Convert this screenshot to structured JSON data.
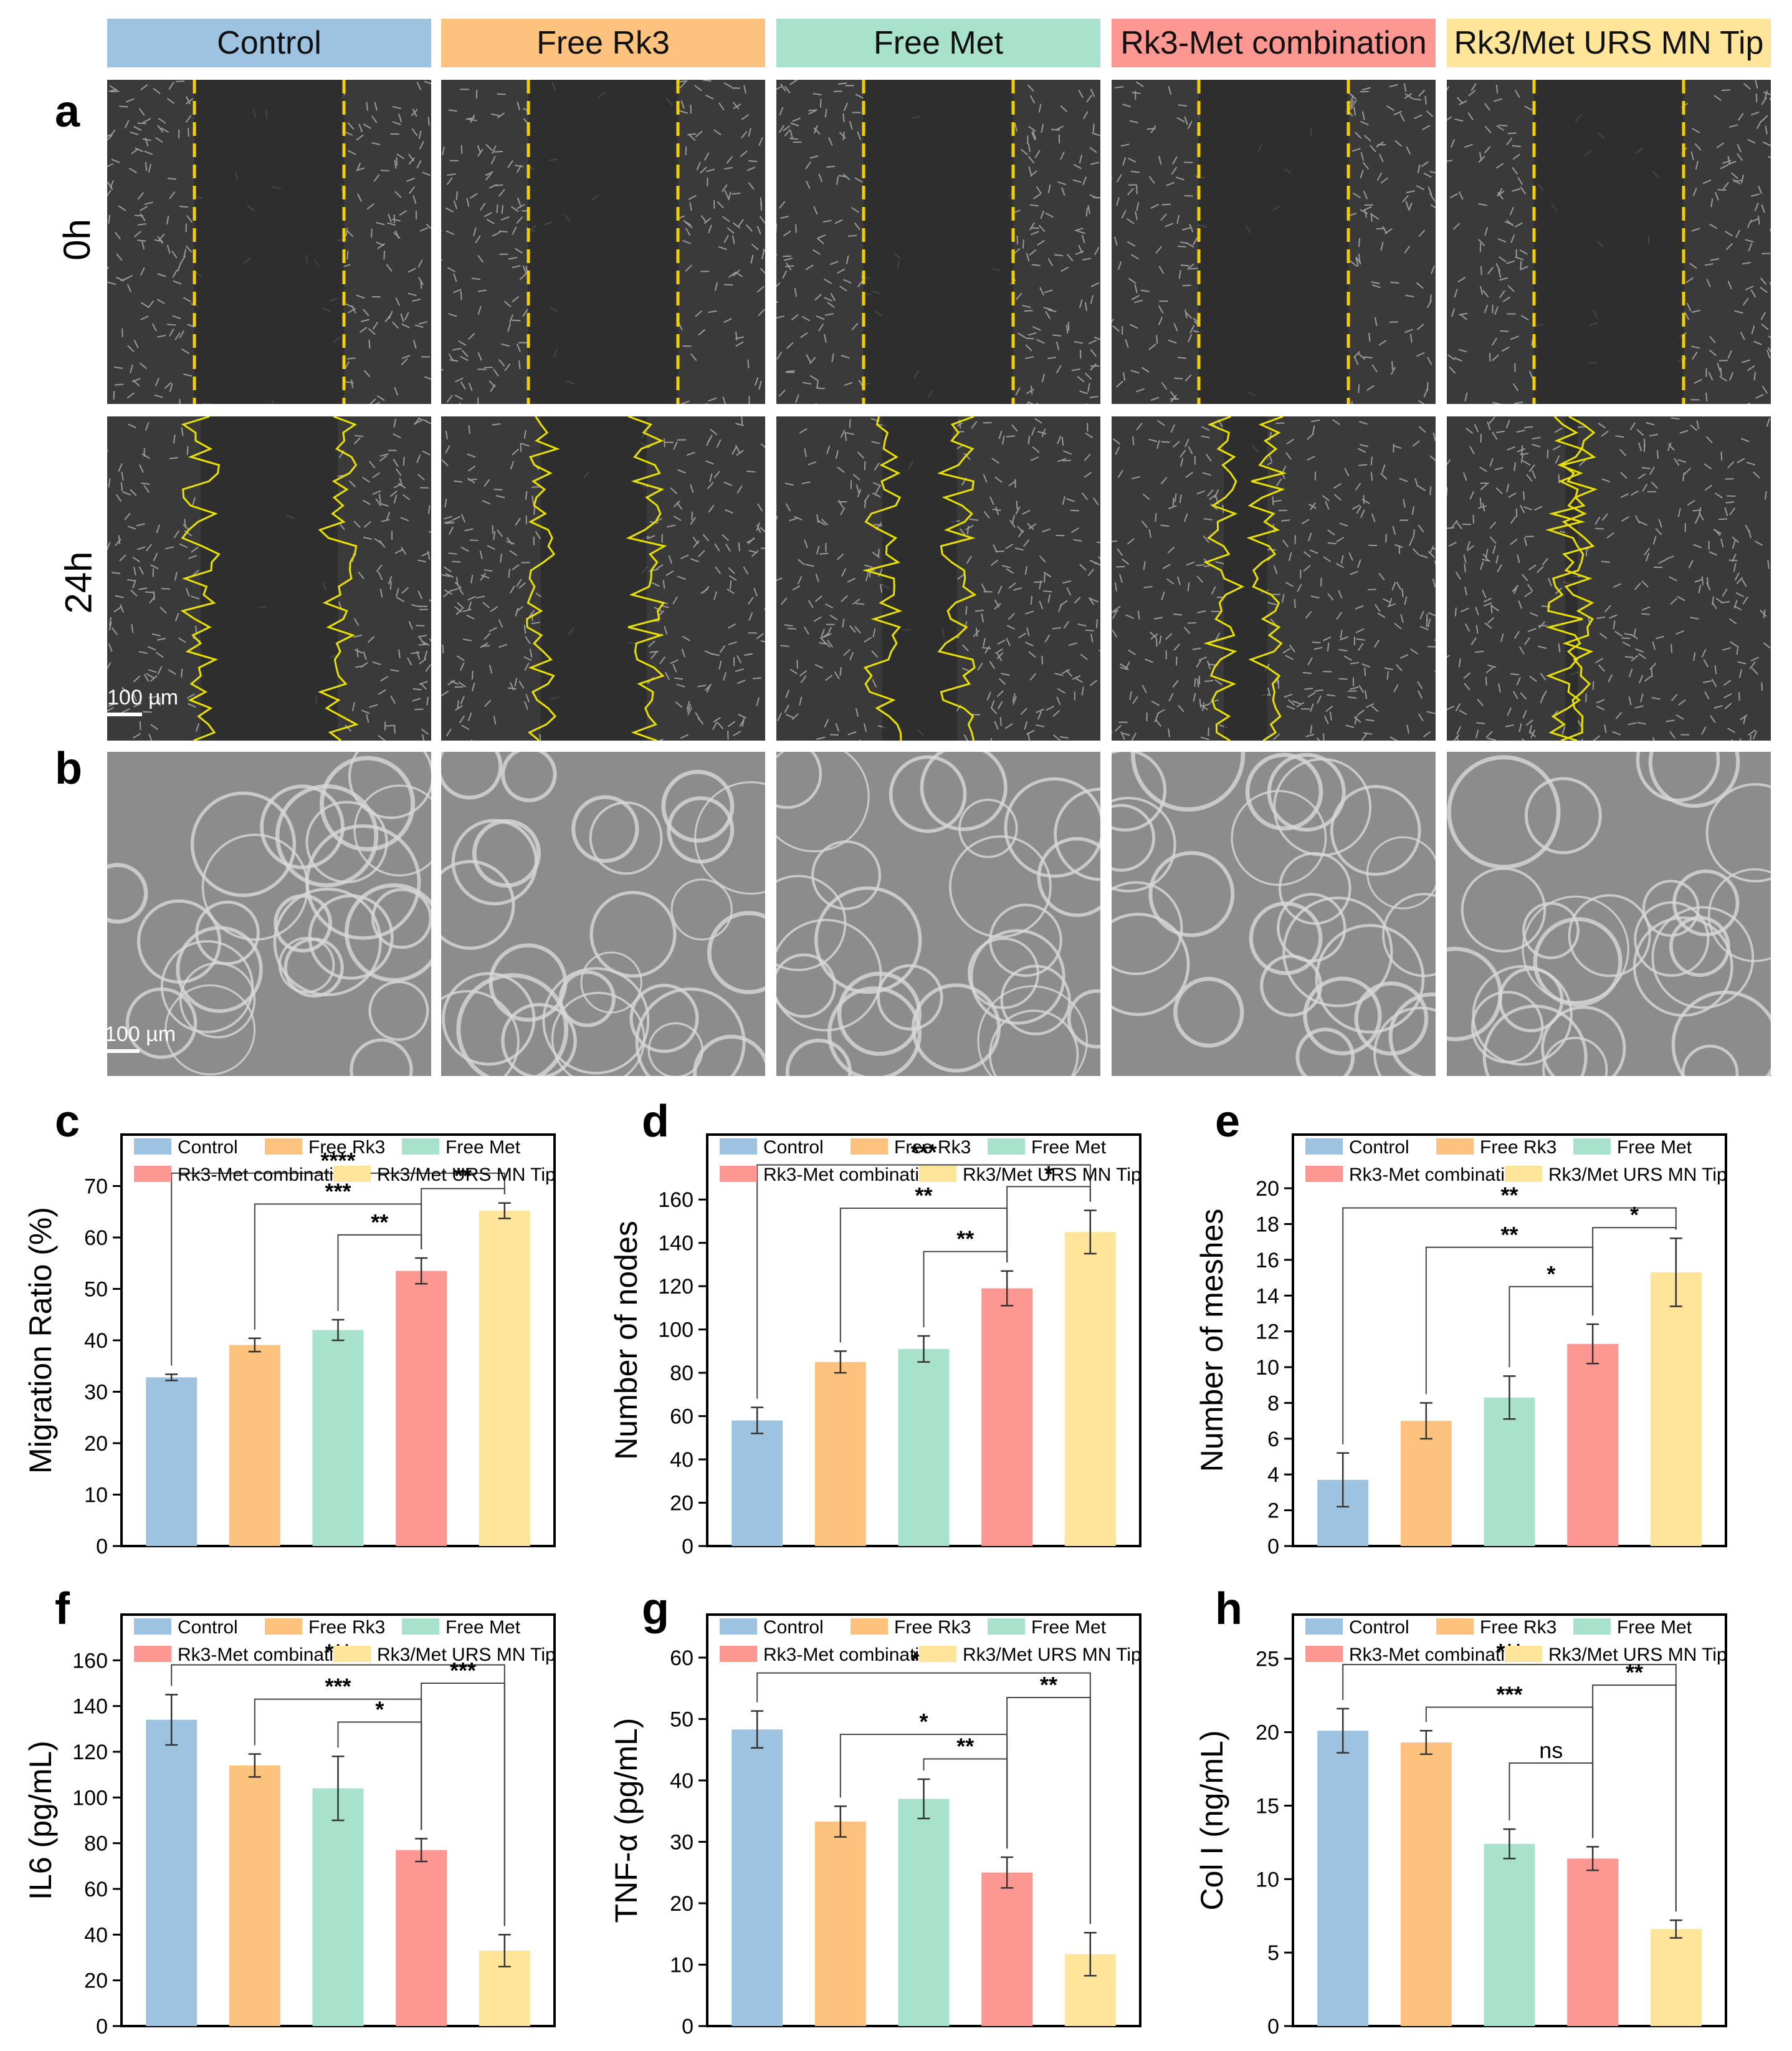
{
  "groups": [
    "Control",
    "Free Rk3",
    "Free Met",
    "Rk3-Met combination",
    "Rk3/Met URS MN Tip"
  ],
  "colors": [
    "#9dc3e1",
    "#fec27f",
    "#a8e2cd",
    "#fd9791",
    "#fee59a"
  ],
  "panel_labels": {
    "a": "a",
    "b": "b",
    "c": "c",
    "d": "d",
    "e": "e",
    "f": "f",
    "g": "g",
    "h": "h"
  },
  "row_labels": {
    "t0": "0h",
    "t24": "24h"
  },
  "scale_bar": "100 µm",
  "chart_data": [
    {
      "id": "c",
      "type": "bar",
      "ylabel": "Migration Ratio (%)",
      "ylim": [
        0,
        80
      ],
      "yticks": [
        0,
        10,
        20,
        30,
        40,
        50,
        60,
        70
      ],
      "categories": [
        "Control",
        "Free Rk3",
        "Free Met",
        "Rk3-Met combination",
        "Rk3/Met URS MN Tip"
      ],
      "values": [
        32.8,
        39.1,
        42.0,
        53.5,
        65.2
      ],
      "errors": [
        0.6,
        1.3,
        2.0,
        2.5,
        1.5
      ],
      "sig": [
        {
          "from": 0,
          "to": 4,
          "label": "****",
          "y": 72.5
        },
        {
          "from": 1,
          "to": 3,
          "label": "***",
          "y": 66.5
        },
        {
          "from": 2,
          "to": 3,
          "label": "**",
          "y": 60.5
        },
        {
          "from": 3,
          "to": 4,
          "label": "**",
          "y": 69.5
        }
      ]
    },
    {
      "id": "d",
      "type": "bar",
      "ylabel": "Number of nodes",
      "ylim": [
        0,
        190
      ],
      "yticks": [
        0,
        20,
        40,
        60,
        80,
        100,
        120,
        140,
        160
      ],
      "categories": [
        "Control",
        "Free Rk3",
        "Free Met",
        "Rk3-Met combination",
        "Rk3/Met URS MN Tip"
      ],
      "values": [
        58,
        85,
        91,
        119,
        145
      ],
      "errors": [
        6,
        5,
        6,
        8,
        10
      ],
      "sig": [
        {
          "from": 0,
          "to": 4,
          "label": "***",
          "y": 176
        },
        {
          "from": 1,
          "to": 3,
          "label": "**",
          "y": 156
        },
        {
          "from": 2,
          "to": 3,
          "label": "**",
          "y": 136
        },
        {
          "from": 3,
          "to": 4,
          "label": "*",
          "y": 166
        }
      ]
    },
    {
      "id": "e",
      "type": "bar",
      "ylabel": "Number of meshes",
      "ylim": [
        0,
        23
      ],
      "yticks": [
        0,
        2,
        4,
        6,
        8,
        10,
        12,
        14,
        16,
        18,
        20
      ],
      "categories": [
        "Control",
        "Free Rk3",
        "Free Met",
        "Rk3-Met combination",
        "Rk3/Met URS MN Tip"
      ],
      "values": [
        3.7,
        7.0,
        8.3,
        11.3,
        15.3
      ],
      "errors": [
        1.5,
        1.0,
        1.2,
        1.1,
        1.9
      ],
      "sig": [
        {
          "from": 0,
          "to": 4,
          "label": "**",
          "y": 18.9
        },
        {
          "from": 1,
          "to": 3,
          "label": "**",
          "y": 16.7
        },
        {
          "from": 2,
          "to": 3,
          "label": "*",
          "y": 14.5
        },
        {
          "from": 3,
          "to": 4,
          "label": "*",
          "y": 17.8
        }
      ]
    },
    {
      "id": "f",
      "type": "bar",
      "ylabel": "IL6 (pg/mL)",
      "ylim": [
        0,
        180
      ],
      "yticks": [
        0,
        20,
        40,
        60,
        80,
        100,
        120,
        140,
        160
      ],
      "categories": [
        "Control",
        "Free Rk3",
        "Free Met",
        "Rk3-Met combination",
        "Rk3/Met URS MN Tip"
      ],
      "values": [
        134,
        114,
        104,
        77,
        33
      ],
      "errors": [
        11,
        5,
        14,
        5,
        7
      ],
      "sig": [
        {
          "from": 0,
          "to": 4,
          "label": "***",
          "y": 158
        },
        {
          "from": 1,
          "to": 3,
          "label": "***",
          "y": 143
        },
        {
          "from": 2,
          "to": 3,
          "label": "*",
          "y": 133
        },
        {
          "from": 3,
          "to": 4,
          "label": "***",
          "y": 150
        }
      ]
    },
    {
      "id": "g",
      "type": "bar",
      "ylabel": "TNF-α (pg/mL)",
      "ylim": [
        0,
        67
      ],
      "yticks": [
        0,
        10,
        20,
        30,
        40,
        50,
        60
      ],
      "categories": [
        "Control",
        "Free Rk3",
        "Free Met",
        "Rk3-Met combination",
        "Rk3/Met URS MN Tip"
      ],
      "values": [
        48.3,
        33.3,
        37.0,
        25.0,
        11.7
      ],
      "errors": [
        3.0,
        2.5,
        3.2,
        2.5,
        3.5
      ],
      "sig": [
        {
          "from": 0,
          "to": 4,
          "label": "***",
          "y": 57.5
        },
        {
          "from": 1,
          "to": 3,
          "label": "*",
          "y": 47.5
        },
        {
          "from": 2,
          "to": 3,
          "label": "**",
          "y": 43.5
        },
        {
          "from": 3,
          "to": 4,
          "label": "**",
          "y": 53.5
        }
      ]
    },
    {
      "id": "h",
      "type": "bar",
      "ylabel": "Col I (ng/mL)",
      "ylim": [
        0,
        28
      ],
      "yticks": [
        0,
        5,
        10,
        15,
        20,
        25
      ],
      "categories": [
        "Control",
        "Free Rk3",
        "Free Met",
        "Rk3-Met combination",
        "Rk3/Met URS MN Tip"
      ],
      "values": [
        20.1,
        19.3,
        12.4,
        11.4,
        6.6
      ],
      "errors": [
        1.5,
        0.8,
        1.0,
        0.8,
        0.6
      ],
      "sig": [
        {
          "from": 0,
          "to": 4,
          "label": "***",
          "y": 24.6
        },
        {
          "from": 1,
          "to": 3,
          "label": "***",
          "y": 21.7
        },
        {
          "from": 2,
          "to": 3,
          "label": "ns",
          "y": 17.9
        },
        {
          "from": 3,
          "to": 4,
          "label": "**",
          "y": 23.2
        }
      ]
    }
  ]
}
